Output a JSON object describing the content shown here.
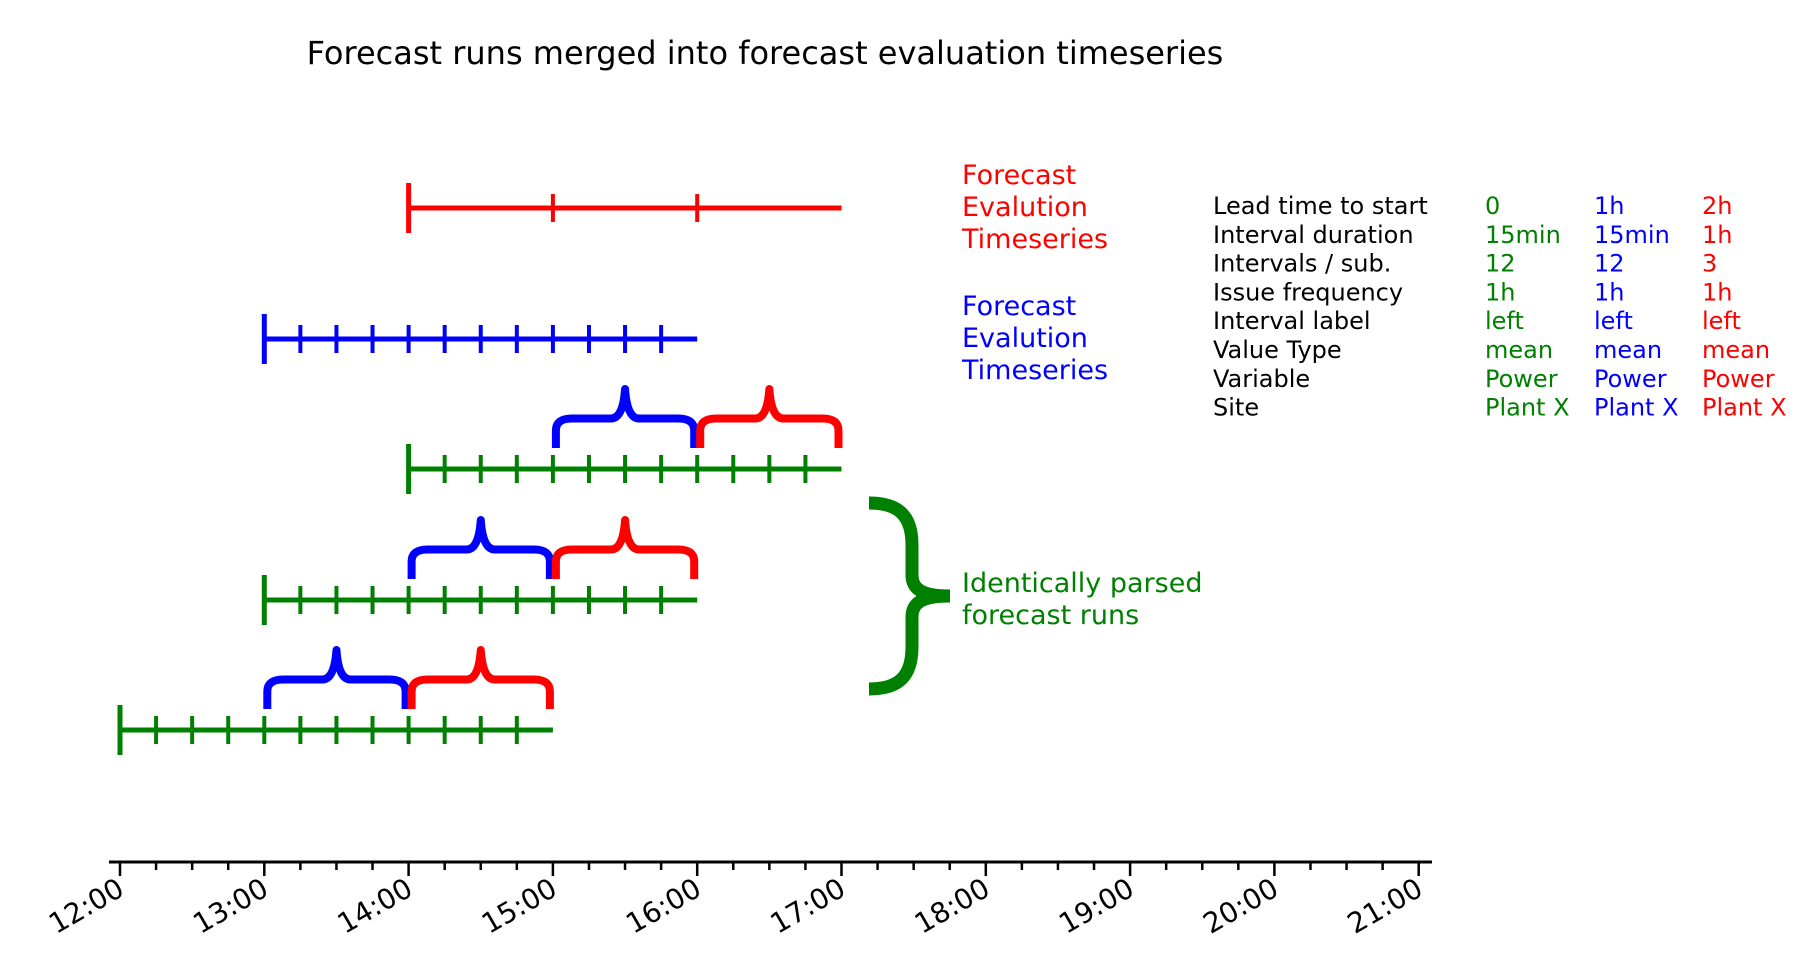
{
  "title": "Forecast runs merged into forecast evaluation timeseries",
  "colors": {
    "green": "#008000",
    "blue": "#0000ff",
    "red": "#ff0000",
    "black": "#000000"
  },
  "x_axis": {
    "tick_labels": [
      "12:00",
      "13:00",
      "14:00",
      "15:00",
      "16:00",
      "17:00",
      "18:00",
      "19:00",
      "20:00",
      "21:00"
    ]
  },
  "legend": {
    "red_label": [
      "Forecast",
      "Evalution",
      "Timeseries"
    ],
    "blue_label": [
      "Forecast",
      "Evalution",
      "Timeseries"
    ],
    "green_label": [
      "Identically parsed",
      "forecast runs"
    ]
  },
  "table": {
    "row_labels": [
      "Lead time to start",
      "Interval duration",
      "Intervals / sub.",
      "Issue frequency",
      "Interval label",
      "Value Type",
      "Variable",
      "Site"
    ],
    "columns": [
      {
        "color": "green",
        "values": [
          "0",
          "15min",
          "12",
          "1h",
          "left",
          "mean",
          "Power",
          "Plant X"
        ]
      },
      {
        "color": "blue",
        "values": [
          "1h",
          "15min",
          "12",
          "1h",
          "left",
          "mean",
          "Power",
          "Plant X"
        ]
      },
      {
        "color": "red",
        "values": [
          "2h",
          "1h",
          "3",
          "1h",
          "left",
          "mean",
          "Power",
          "Plant X"
        ]
      }
    ]
  },
  "timelines": [
    {
      "id": "red-eval",
      "color": "red",
      "start": "14:00",
      "end": "17:00",
      "ticks_every_min": 60
    },
    {
      "id": "blue-eval",
      "color": "blue",
      "start": "13:00",
      "end": "16:00",
      "ticks_every_min": 15
    },
    {
      "id": "green-run-3",
      "color": "green",
      "start": "14:00",
      "end": "17:00",
      "ticks_every_min": 15
    },
    {
      "id": "green-run-2",
      "color": "green",
      "start": "13:00",
      "end": "16:00",
      "ticks_every_min": 15
    },
    {
      "id": "green-run-1",
      "color": "green",
      "start": "12:00",
      "end": "15:00",
      "ticks_every_min": 15
    }
  ],
  "braces": [
    {
      "above": "green-run-3",
      "color": "blue",
      "start": "15:00",
      "end": "16:00"
    },
    {
      "above": "green-run-3",
      "color": "red",
      "start": "16:00",
      "end": "17:00"
    },
    {
      "above": "green-run-2",
      "color": "blue",
      "start": "14:00",
      "end": "15:00"
    },
    {
      "above": "green-run-2",
      "color": "red",
      "start": "15:00",
      "end": "16:00"
    },
    {
      "above": "green-run-1",
      "color": "blue",
      "start": "13:00",
      "end": "14:00"
    },
    {
      "above": "green-run-1",
      "color": "red",
      "start": "14:00",
      "end": "15:00"
    }
  ]
}
